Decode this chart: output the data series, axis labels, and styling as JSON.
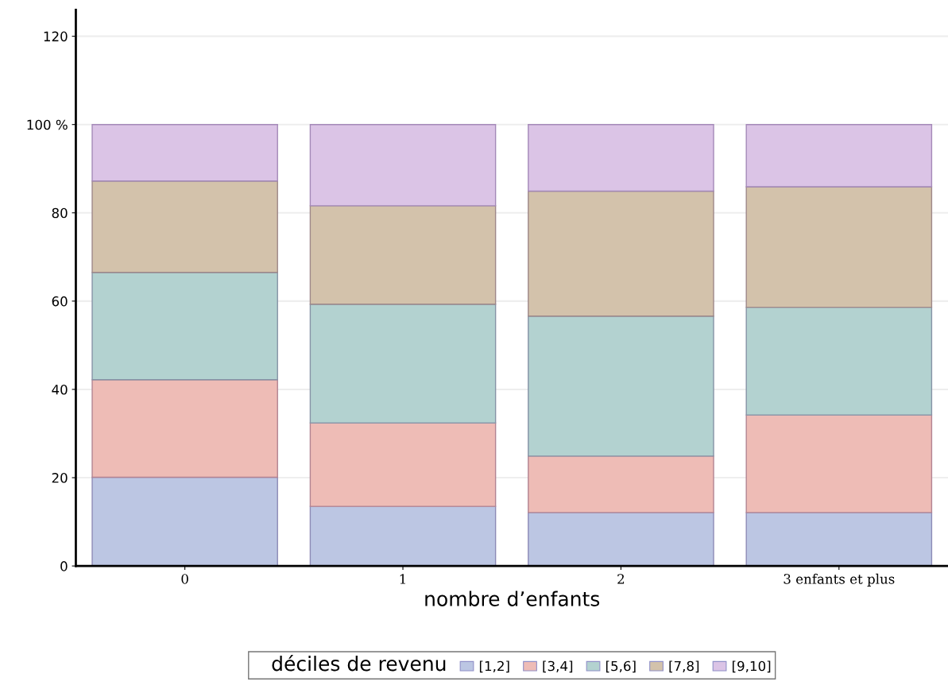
{
  "chart_data": {
    "type": "bar",
    "stacked": true,
    "xlabel": "nombre d’enfants",
    "legend_title": "déciles de revenu",
    "categories": [
      "0",
      "1",
      "2",
      "3 enfants et plus"
    ],
    "series": [
      {
        "name": "[1,2]",
        "color": "#bcc6e3",
        "values": [
          20.1,
          13.5,
          12.1,
          12.1
        ]
      },
      {
        "name": "[3,4]",
        "color": "#eebcb6",
        "values": [
          22.1,
          18.9,
          12.8,
          22.1
        ]
      },
      {
        "name": "[5,6]",
        "color": "#b3d2d0",
        "values": [
          24.3,
          26.9,
          31.7,
          24.4
        ]
      },
      {
        "name": "[7,8]",
        "color": "#d3c2ab",
        "values": [
          20.7,
          22.3,
          28.3,
          27.3
        ]
      },
      {
        "name": "[9,10]",
        "color": "#dbc4e6",
        "values": [
          12.8,
          18.4,
          15.1,
          14.1
        ]
      }
    ],
    "ylim": [
      0,
      126
    ],
    "yticks": [
      0,
      20,
      40,
      60,
      80,
      {
        "value": 100,
        "label": "100 %"
      },
      120
    ],
    "grid": "y",
    "legend": "bottom"
  }
}
